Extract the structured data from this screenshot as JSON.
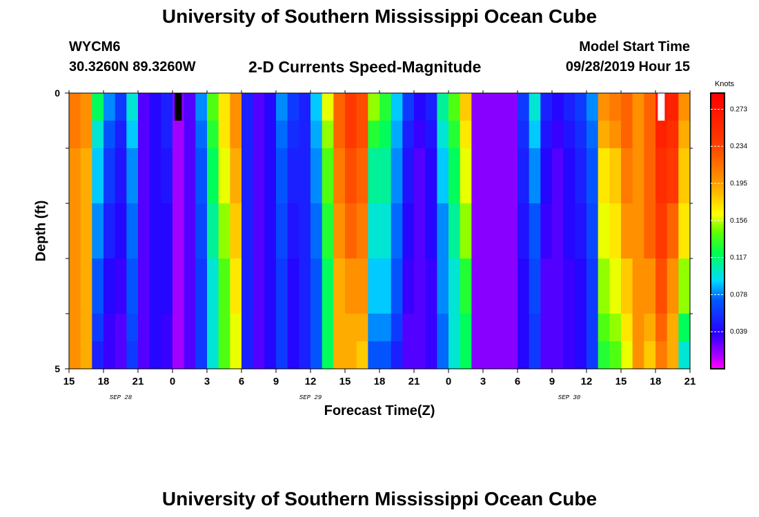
{
  "header": {
    "title": "University of Southern Mississippi Ocean Cube",
    "station_id": "WYCM6",
    "station_coords": "30.3260N 89.3260W",
    "plot_title": "2-D Currents Speed-Magnitude",
    "model_label": "Model Start Time",
    "model_time": "09/28/2019 Hour 15"
  },
  "footer": {
    "title": "University of Southern Mississippi Ocean Cube"
  },
  "chart_data": {
    "type": "heatmap",
    "title": "2-D Currents Speed-Magnitude",
    "xlabel": "Forecast Time(Z)",
    "ylabel": "Depth (ft)",
    "xlim_hours": [
      0,
      54
    ],
    "ylim": [
      0,
      5
    ],
    "x_ticks": [
      {
        "h": 0,
        "label": "15"
      },
      {
        "h": 3,
        "label": "18"
      },
      {
        "h": 6,
        "label": "21"
      },
      {
        "h": 9,
        "label": "0"
      },
      {
        "h": 12,
        "label": "3"
      },
      {
        "h": 15,
        "label": "6"
      },
      {
        "h": 18,
        "label": "9"
      },
      {
        "h": 21,
        "label": "12"
      },
      {
        "h": 24,
        "label": "15"
      },
      {
        "h": 27,
        "label": "18"
      },
      {
        "h": 30,
        "label": "21"
      },
      {
        "h": 33,
        "label": "0"
      },
      {
        "h": 36,
        "label": "3"
      },
      {
        "h": 39,
        "label": "6"
      },
      {
        "h": 42,
        "label": "9"
      },
      {
        "h": 45,
        "label": "12"
      },
      {
        "h": 48,
        "label": "15"
      },
      {
        "h": 51,
        "label": "18"
      },
      {
        "h": 54,
        "label": "21"
      }
    ],
    "date_labels": [
      {
        "h": 4.5,
        "label": "SEP 28"
      },
      {
        "h": 21,
        "label": "SEP 29"
      },
      {
        "h": 43.5,
        "label": "SEP 30"
      }
    ],
    "y_ticks": [
      {
        "v": 0,
        "label": "0"
      },
      {
        "v": 5,
        "label": "5"
      }
    ],
    "y_minor_ticks": [
      1,
      2,
      3,
      4
    ],
    "colorbar": {
      "unit": "Knots",
      "min": 0.0,
      "max": 0.29,
      "tick_values": [
        0.039,
        0.078,
        0.117,
        0.156,
        0.195,
        0.234,
        0.273
      ],
      "tick_labels": [
        "0.039",
        "0.078",
        "0.117",
        "0.156",
        "0.195",
        "0.234",
        "0.273"
      ]
    },
    "depth_levels": [
      0.25,
      0.75,
      1.5,
      2.5,
      3.5,
      4.5,
      4.75
    ],
    "speed_knots": [
      [
        0.21,
        0.21,
        0.2,
        0.2,
        0.2,
        0.2,
        0.2
      ],
      [
        0.2,
        0.2,
        0.19,
        0.19,
        0.19,
        0.19,
        0.19
      ],
      [
        0.12,
        0.1,
        0.09,
        0.08,
        0.07,
        0.06,
        0.05
      ],
      [
        0.08,
        0.07,
        0.06,
        0.05,
        0.04,
        0.035,
        0.035
      ],
      [
        0.06,
        0.05,
        0.045,
        0.04,
        0.035,
        0.03,
        0.03
      ],
      [
        0.1,
        0.09,
        0.08,
        0.075,
        0.07,
        0.065,
        0.06
      ],
      [
        0.03,
        0.03,
        0.03,
        0.03,
        0.03,
        0.03,
        0.03
      ],
      [
        0.04,
        0.04,
        0.04,
        0.04,
        0.04,
        0.04,
        0.04
      ],
      [
        0.05,
        0.05,
        0.045,
        0.04,
        0.04,
        0.035,
        0.035
      ],
      [
        0.02,
        0.015,
        0.015,
        0.015,
        0.015,
        0.015,
        0.015
      ],
      [
        0.03,
        0.03,
        0.03,
        0.03,
        0.03,
        0.03,
        0.03
      ],
      [
        0.08,
        0.075,
        0.07,
        0.065,
        0.06,
        0.06,
        0.06
      ],
      [
        0.14,
        0.13,
        0.12,
        0.11,
        0.1,
        0.1,
        0.1
      ],
      [
        0.17,
        0.17,
        0.16,
        0.15,
        0.14,
        0.14,
        0.14
      ],
      [
        0.2,
        0.2,
        0.19,
        0.18,
        0.17,
        0.16,
        0.16
      ],
      [
        0.05,
        0.05,
        0.05,
        0.05,
        0.05,
        0.05,
        0.05
      ],
      [
        0.03,
        0.03,
        0.03,
        0.03,
        0.03,
        0.03,
        0.03
      ],
      [
        0.04,
        0.04,
        0.04,
        0.04,
        0.04,
        0.04,
        0.04
      ],
      [
        0.08,
        0.075,
        0.07,
        0.065,
        0.06,
        0.06,
        0.06
      ],
      [
        0.06,
        0.055,
        0.05,
        0.045,
        0.04,
        0.04,
        0.04
      ],
      [
        0.05,
        0.05,
        0.05,
        0.05,
        0.05,
        0.05,
        0.05
      ],
      [
        0.09,
        0.085,
        0.08,
        0.075,
        0.07,
        0.07,
        0.07
      ],
      [
        0.16,
        0.15,
        0.14,
        0.13,
        0.12,
        0.12,
        0.12
      ],
      [
        0.22,
        0.22,
        0.21,
        0.2,
        0.19,
        0.19,
        0.19
      ],
      [
        0.24,
        0.24,
        0.23,
        0.22,
        0.2,
        0.19,
        0.19
      ],
      [
        0.23,
        0.23,
        0.22,
        0.21,
        0.2,
        0.19,
        0.18
      ],
      [
        0.15,
        0.13,
        0.11,
        0.1,
        0.09,
        0.08,
        0.07
      ],
      [
        0.13,
        0.12,
        0.11,
        0.1,
        0.09,
        0.08,
        0.07
      ],
      [
        0.09,
        0.085,
        0.08,
        0.075,
        0.07,
        0.06,
        0.05
      ],
      [
        0.06,
        0.05,
        0.045,
        0.04,
        0.035,
        0.03,
        0.03
      ],
      [
        0.04,
        0.035,
        0.03,
        0.03,
        0.03,
        0.03,
        0.03
      ],
      [
        0.05,
        0.045,
        0.04,
        0.04,
        0.035,
        0.035,
        0.035
      ],
      [
        0.11,
        0.1,
        0.09,
        0.08,
        0.08,
        0.075,
        0.075
      ],
      [
        0.14,
        0.13,
        0.12,
        0.11,
        0.1,
        0.1,
        0.1
      ],
      [
        0.18,
        0.17,
        0.16,
        0.15,
        0.13,
        0.12,
        0.12
      ],
      [
        0.02,
        0.02,
        0.02,
        0.02,
        0.02,
        0.02,
        0.02
      ],
      [
        0.02,
        0.02,
        0.02,
        0.02,
        0.02,
        0.02,
        0.02
      ],
      [
        0.02,
        0.02,
        0.02,
        0.02,
        0.02,
        0.02,
        0.02
      ],
      [
        0.02,
        0.02,
        0.02,
        0.02,
        0.02,
        0.02,
        0.02
      ],
      [
        0.06,
        0.055,
        0.05,
        0.045,
        0.04,
        0.04,
        0.04
      ],
      [
        0.1,
        0.09,
        0.08,
        0.07,
        0.065,
        0.06,
        0.06
      ],
      [
        0.05,
        0.045,
        0.04,
        0.035,
        0.03,
        0.03,
        0.03
      ],
      [
        0.04,
        0.035,
        0.03,
        0.03,
        0.03,
        0.03,
        0.03
      ],
      [
        0.05,
        0.045,
        0.04,
        0.04,
        0.035,
        0.035,
        0.035
      ],
      [
        0.06,
        0.055,
        0.05,
        0.045,
        0.04,
        0.04,
        0.04
      ],
      [
        0.08,
        0.075,
        0.07,
        0.065,
        0.06,
        0.06,
        0.06
      ],
      [
        0.2,
        0.19,
        0.17,
        0.16,
        0.15,
        0.14,
        0.13
      ],
      [
        0.21,
        0.2,
        0.18,
        0.17,
        0.16,
        0.15,
        0.14
      ],
      [
        0.22,
        0.22,
        0.21,
        0.2,
        0.18,
        0.17,
        0.16
      ],
      [
        0.2,
        0.2,
        0.2,
        0.2,
        0.2,
        0.2,
        0.2
      ],
      [
        0.22,
        0.22,
        0.22,
        0.22,
        0.2,
        0.19,
        0.18
      ],
      [
        0.27,
        0.26,
        0.25,
        0.24,
        0.23,
        0.22,
        0.21
      ],
      [
        0.26,
        0.25,
        0.24,
        0.22,
        0.2,
        0.19,
        0.19
      ],
      [
        0.2,
        0.19,
        0.18,
        0.17,
        0.15,
        0.12,
        0.1
      ]
    ],
    "missing_cells": [
      {
        "col": 9,
        "row": 0,
        "color": "#000000"
      },
      {
        "col": 51,
        "row": 0,
        "color": "#ffffff"
      }
    ]
  }
}
